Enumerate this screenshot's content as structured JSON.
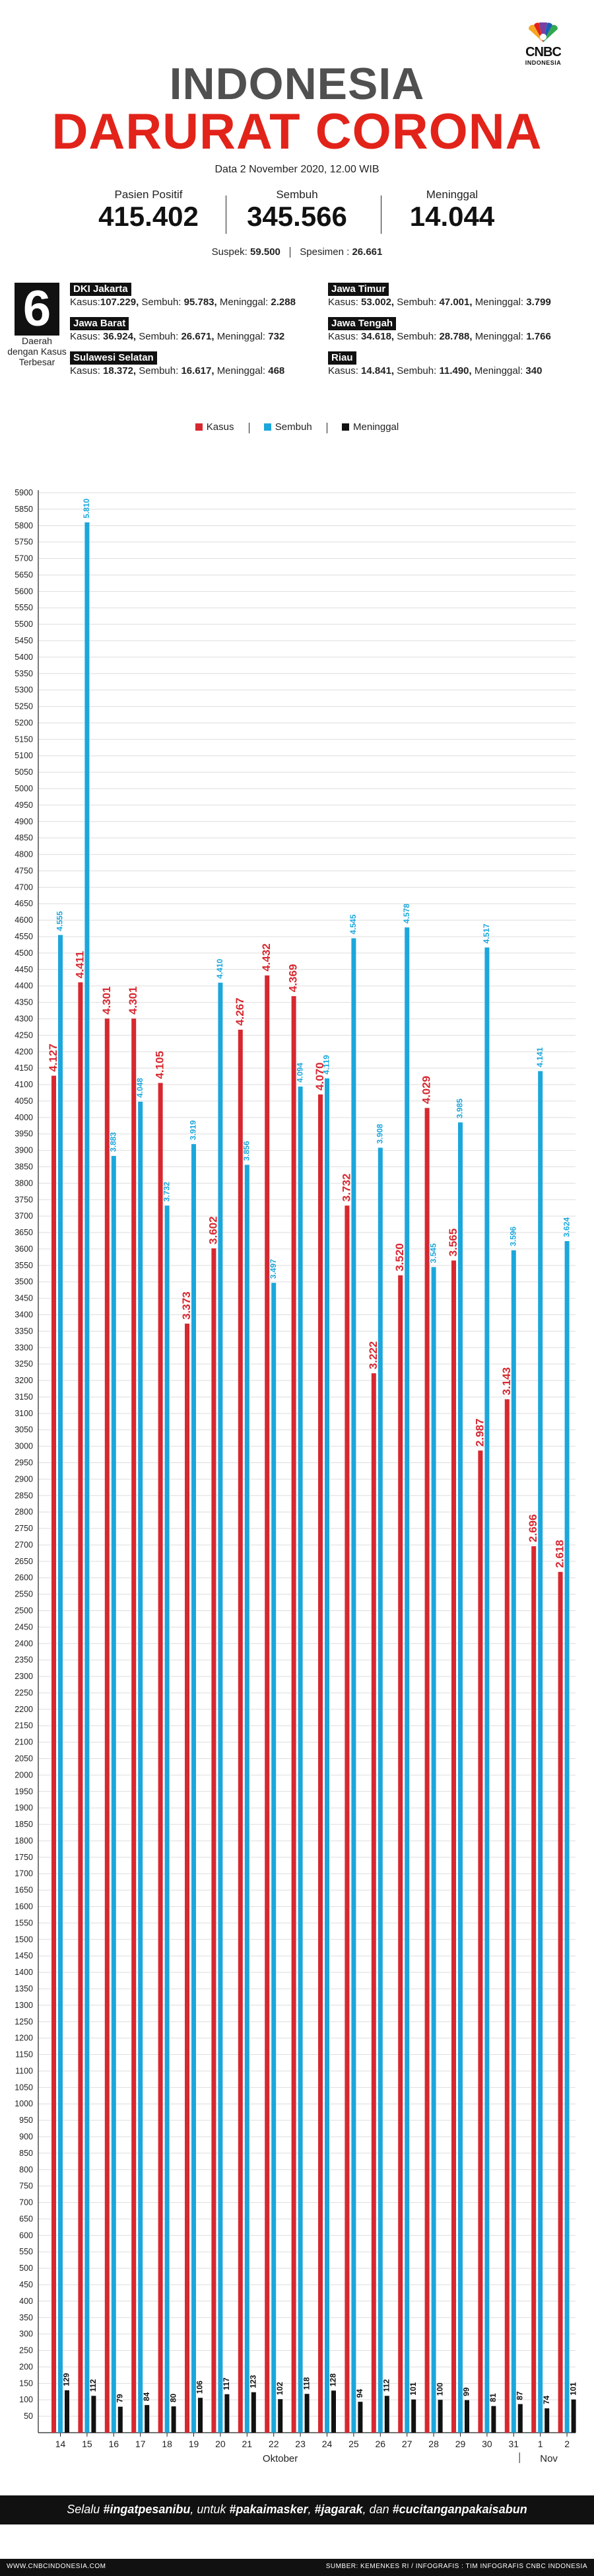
{
  "logo": {
    "brand": "CNBC",
    "sub": "INDONESIA"
  },
  "header": {
    "title_line1": "INDONESIA",
    "title_line2": "DARURAT CORONA",
    "dateline": "Data 2 November 2020, 12.00 WIB"
  },
  "stats": {
    "positif_label": "Pasien Positif",
    "positif_value": "415.402",
    "sembuh_label": "Sembuh",
    "sembuh_value": "345.566",
    "meninggal_label": "Meninggal",
    "meninggal_value": "14.044",
    "suspek_label": "Suspek:",
    "suspek_value": "59.500",
    "spesimen_label": "Spesimen :",
    "spesimen_value": "26.661"
  },
  "regions": {
    "count": "6",
    "caption": "Daerah dengan Kasus Terbesar",
    "label_kasus": "Kasus:",
    "label_sembuh": "Sembuh:",
    "label_meninggal": "Meninggal:",
    "items": [
      {
        "name": "DKI Jakarta",
        "kasus": "107.229,",
        "sembuh": "95.783,",
        "meninggal": "2.288"
      },
      {
        "name": "Jawa Timur",
        "kasus": "53.002,",
        "sembuh": "47.001,",
        "meninggal": "3.799"
      },
      {
        "name": "Jawa Barat",
        "kasus": "36.924,",
        "sembuh": "26.671,",
        "meninggal": "732"
      },
      {
        "name": "Jawa Tengah",
        "kasus": "34.618,",
        "sembuh": "28.788,",
        "meninggal": "1.766"
      },
      {
        "name": "Sulawesi Selatan",
        "kasus": "18.372,",
        "sembuh": "16.617,",
        "meninggal": "468"
      },
      {
        "name": "Riau",
        "kasus": "14.841,",
        "sembuh": "11.490,",
        "meninggal": "340"
      }
    ]
  },
  "colors": {
    "kasus": "#d7282f",
    "sembuh": "#1ca7dc",
    "meninggal": "#111111"
  },
  "chart_data": {
    "type": "bar",
    "categories": [
      "14",
      "15",
      "16",
      "17",
      "18",
      "19",
      "20",
      "21",
      "22",
      "23",
      "24",
      "25",
      "26",
      "27",
      "28",
      "29",
      "30",
      "31",
      "1",
      "2"
    ],
    "category_labels": [
      "Oktober",
      "Nov"
    ],
    "series": [
      {
        "name": "Kasus",
        "values": [
          4127,
          4411,
          4301,
          4301,
          4105,
          3373,
          3602,
          4267,
          4432,
          4369,
          4070,
          3732,
          3222,
          3520,
          4029,
          3565,
          2987,
          3143,
          2696,
          2618
        ],
        "labels": [
          "4.127",
          "4.411",
          "4.301",
          "4.301",
          "4.105",
          "3.373",
          "3.602",
          "4.267",
          "4.432",
          "4.369",
          "4.070",
          "3.732",
          "3.222",
          "3.520",
          "4.029",
          "3.565",
          "2.987",
          "3.143",
          "2.696",
          "2.618"
        ]
      },
      {
        "name": "Sembuh",
        "values": [
          4555,
          5810,
          3883,
          4048,
          3732,
          3919,
          4410,
          3856,
          3497,
          4094,
          4119,
          4545,
          3908,
          4578,
          3545,
          3985,
          4517,
          3596,
          4141,
          3624
        ],
        "labels": [
          "4.555",
          "5.810",
          "3.883",
          "4.048",
          "3.732",
          "3.919",
          "4.410",
          "3.856",
          "3.497",
          "4.094",
          "4.119",
          "4.545",
          "3.908",
          "4.578",
          "3.545",
          "3.985",
          "4.517",
          "3.596",
          "4.141",
          "3.624"
        ]
      },
      {
        "name": "Meninggal",
        "values": [
          129,
          112,
          79,
          84,
          80,
          106,
          117,
          123,
          102,
          118,
          128,
          94,
          112,
          101,
          100,
          99,
          81,
          87,
          74,
          101
        ],
        "labels": [
          "129",
          "112",
          "79",
          "84",
          "80",
          "106",
          "117",
          "123",
          "102",
          "118",
          "128",
          "94",
          "112",
          "101",
          "100",
          "99",
          "81",
          "87",
          "74",
          "101"
        ]
      }
    ],
    "ylim": [
      0,
      5900
    ],
    "ytick_step": 50,
    "grid": true,
    "legend_position": "top-center"
  },
  "footer": {
    "tagline_pre": "Selalu ",
    "tag1": "#ingatpesanibu",
    "tagline_mid1": ", untuk ",
    "tag2": "#pakaimasker",
    "tagline_mid2": ", ",
    "tag3": "#jagarak",
    "tagline_mid3": ", dan ",
    "tag4": "#cucitanganpakaisabun",
    "website": "WWW.CNBCINDONESIA.COM",
    "source": "SUMBER: KEMENKES RI / INFOGRAFIS : TIM INFOGRAFIS CNBC INDONESIA"
  }
}
